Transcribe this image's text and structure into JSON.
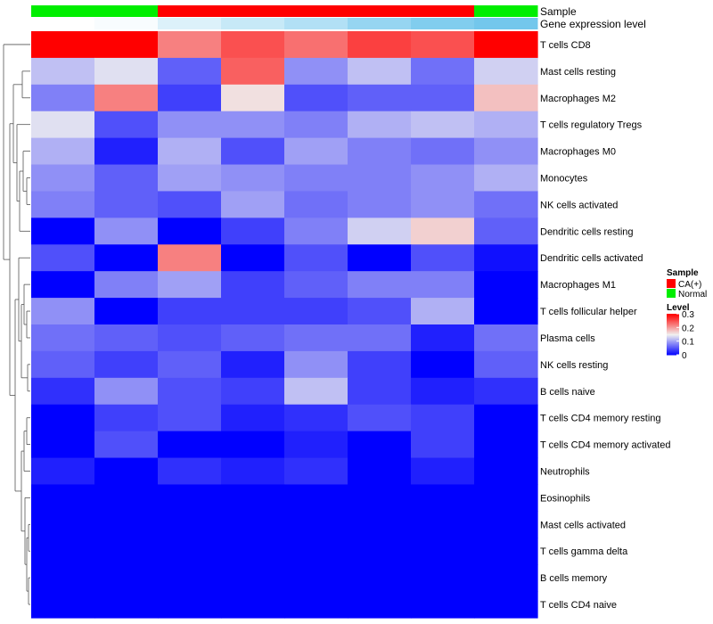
{
  "chart_data": {
    "type": "heatmap",
    "annotation_rows": [
      {
        "name": "Sample",
        "values": [
          "Normal",
          "Normal",
          "CA(+)",
          "CA(+)",
          "CA(+)",
          "CA(+)",
          "CA(+)",
          "Normal"
        ]
      },
      {
        "name": "Gene expression level",
        "values": [
          0.0,
          0.05,
          0.25,
          0.4,
          0.55,
          0.75,
          0.9,
          1.0
        ]
      }
    ],
    "rows": [
      "T cells CD8",
      "Mast cells resting",
      "Macrophages M2",
      "T cells regulatory  Tregs",
      "Macrophages M0",
      "Monocytes",
      "NK cells activated",
      "Dendritic cells resting",
      "Dendritic cells activated",
      "Macrophages M1",
      "T cells follicular helper",
      "Plasma cells",
      "NK cells resting",
      "B cells naive",
      "T cells CD4 memory resting",
      "T cells CD4 memory activated",
      "Neutrophils",
      "Eosinophils",
      "Mast cells activated",
      "T cells gamma delta",
      "B cells memory",
      "T cells CD4 naive"
    ],
    "values": [
      [
        0.3,
        0.3,
        0.22,
        0.25,
        0.23,
        0.26,
        0.25,
        0.3
      ],
      [
        0.12,
        0.14,
        0.06,
        0.24,
        0.09,
        0.12,
        0.07,
        0.13
      ],
      [
        0.08,
        0.22,
        0.04,
        0.16,
        0.05,
        0.06,
        0.06,
        0.18
      ],
      [
        0.14,
        0.05,
        0.09,
        0.09,
        0.08,
        0.11,
        0.12,
        0.11
      ],
      [
        0.11,
        0.02,
        0.11,
        0.05,
        0.1,
        0.08,
        0.07,
        0.09
      ],
      [
        0.09,
        0.06,
        0.1,
        0.09,
        0.08,
        0.08,
        0.09,
        0.11
      ],
      [
        0.08,
        0.06,
        0.05,
        0.1,
        0.07,
        0.08,
        0.09,
        0.07
      ],
      [
        0.0,
        0.09,
        0.0,
        0.04,
        0.08,
        0.13,
        0.17,
        0.06
      ],
      [
        0.05,
        0.0,
        0.22,
        0.0,
        0.05,
        0.0,
        0.05,
        0.01
      ],
      [
        0.0,
        0.08,
        0.1,
        0.04,
        0.06,
        0.08,
        0.08,
        0.0
      ],
      [
        0.09,
        0.0,
        0.04,
        0.04,
        0.04,
        0.05,
        0.11,
        0.0
      ],
      [
        0.07,
        0.06,
        0.05,
        0.06,
        0.07,
        0.07,
        0.02,
        0.07
      ],
      [
        0.06,
        0.04,
        0.06,
        0.02,
        0.09,
        0.04,
        0.0,
        0.06
      ],
      [
        0.03,
        0.09,
        0.05,
        0.04,
        0.12,
        0.04,
        0.02,
        0.03
      ],
      [
        0.0,
        0.04,
        0.05,
        0.02,
        0.03,
        0.05,
        0.04,
        0.0
      ],
      [
        0.0,
        0.05,
        0.0,
        0.0,
        0.02,
        0.0,
        0.04,
        0.0
      ],
      [
        0.02,
        0.0,
        0.03,
        0.02,
        0.03,
        0.0,
        0.02,
        0.0
      ],
      [
        0.0,
        0.0,
        0.0,
        0.0,
        0.0,
        0.0,
        0.0,
        0.0
      ],
      [
        0.0,
        0.0,
        0.0,
        0.0,
        0.0,
        0.0,
        0.0,
        0.0
      ],
      [
        0.0,
        0.0,
        0.0,
        0.0,
        0.0,
        0.0,
        0.0,
        0.0
      ],
      [
        0.0,
        0.0,
        0.0,
        0.0,
        0.0,
        0.0,
        0.0,
        0.0
      ],
      [
        0.0,
        0.0,
        0.0,
        0.0,
        0.0,
        0.0,
        0.0,
        0.0
      ]
    ],
    "color_scale": {
      "min": 0,
      "max": 0.3,
      "low": "#0000ff",
      "mid": "#f0f0f0",
      "high": "#ff0000",
      "mid_value": 0.15
    },
    "gene_scale": {
      "low": "#ffffff",
      "high": "#73c7ec"
    },
    "legend_sample": {
      "title": "Sample",
      "items": [
        {
          "label": "CA(+)",
          "color": "#ff0000"
        },
        {
          "label": "Normal",
          "color": "#00ee00"
        }
      ]
    },
    "legend_level": {
      "title": "Level",
      "ticks": [
        {
          "label": "0.3",
          "value": 0.3
        },
        {
          "label": "0.2",
          "value": 0.2
        },
        {
          "label": "0.1",
          "value": 0.1
        },
        {
          "label": "0",
          "value": 0
        }
      ]
    },
    "legend_placement": "right",
    "dendrogram": "left"
  }
}
